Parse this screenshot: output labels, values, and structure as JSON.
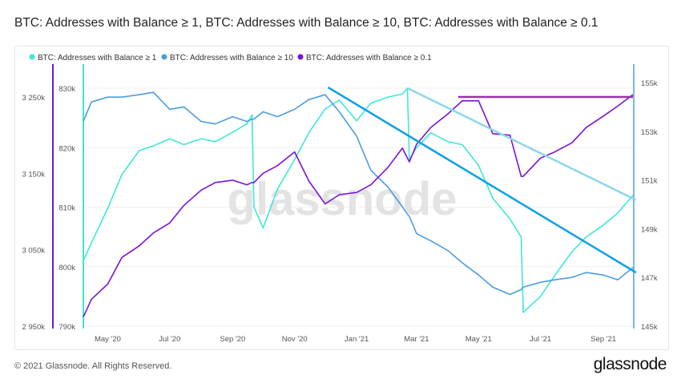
{
  "title": "BTC: Addresses with Balance ≥ 1, BTC: Addresses with Balance ≥ 10, BTC: Addresses with Balance ≥ 0.1",
  "footer": "© 2021 Glassnode. All Rights Reserved.",
  "brand": "glassnode",
  "watermark": "glassnode",
  "chart_data": {
    "type": "line",
    "legend_position": "top-left",
    "grid": true,
    "x": [
      "2020-04-07",
      "2020-04-15",
      "2020-05-01",
      "2020-05-15",
      "2020-06-01",
      "2020-06-15",
      "2020-07-01",
      "2020-07-15",
      "2020-08-01",
      "2020-08-15",
      "2020-09-01",
      "2020-09-15",
      "2020-09-20",
      "2020-09-22",
      "2020-10-01",
      "2020-10-15",
      "2020-11-01",
      "2020-11-15",
      "2020-12-01",
      "2020-12-15",
      "2021-01-01",
      "2021-01-15",
      "2021-02-01",
      "2021-02-15",
      "2021-02-20",
      "2021-02-22",
      "2021-03-01",
      "2021-03-15",
      "2021-04-01",
      "2021-04-15",
      "2021-05-01",
      "2021-05-15",
      "2021-06-01",
      "2021-06-12",
      "2021-06-14",
      "2021-07-01",
      "2021-07-15",
      "2021-08-01",
      "2021-08-15",
      "2021-09-01",
      "2021-09-15",
      "2021-09-30"
    ],
    "xlim": [
      "2020-04-07",
      "2021-09-30"
    ],
    "x_ticks": [
      [
        "2020-05-01",
        "May '20"
      ],
      [
        "2020-07-01",
        "Jul '20"
      ],
      [
        "2020-09-01",
        "Sep '20"
      ],
      [
        "2020-11-01",
        "Nov '20"
      ],
      [
        "2021-01-01",
        "Jan '21"
      ],
      [
        "2021-03-01",
        "Mar '21"
      ],
      [
        "2021-05-01",
        "May '21"
      ],
      [
        "2021-07-01",
        "Jul '21"
      ],
      [
        "2021-09-01",
        "Sep '21"
      ]
    ],
    "axes": {
      "outer_left": {
        "ylim": [
          2950,
          3250
        ],
        "ticks": [
          "2 950k",
          "3 050k",
          "3 150k",
          "3 250k"
        ],
        "tick_values": [
          2950,
          3050,
          3150,
          3250
        ],
        "color": "#7b12d6"
      },
      "inner_left": {
        "ylim": [
          790,
          830
        ],
        "ticks": [
          "790k",
          "800k",
          "810k",
          "820k",
          "830k"
        ],
        "tick_values": [
          790,
          800,
          810,
          820,
          830
        ],
        "color": "#3ee8d8"
      },
      "right": {
        "ylim": [
          145,
          155
        ],
        "ticks": [
          "145k",
          "147k",
          "149k",
          "151k",
          "153k",
          "155k"
        ],
        "tick_values": [
          145,
          147,
          149,
          151,
          153,
          155
        ],
        "color": "#4a9de0"
      }
    },
    "series": [
      {
        "name": "BTC: Addresses with Balance ≥ 1",
        "axis": "inner_left",
        "color": "#3ee8d8",
        "values": [
          801,
          804,
          809.8,
          815.5,
          819.5,
          820.3,
          821.5,
          820.5,
          821.5,
          821,
          822.6,
          824,
          825.5,
          810,
          806.5,
          813,
          818,
          822.5,
          826.5,
          828,
          824.5,
          827.5,
          828.5,
          829,
          830,
          818,
          820,
          822.5,
          821,
          820.5,
          817,
          811.5,
          808,
          805,
          792.3,
          795,
          798.5,
          802.5,
          805,
          807,
          809,
          812
        ]
      },
      {
        "name": "BTC: Addresses with Balance ≥ 10",
        "axis": "right",
        "color": "#4a9de0",
        "values": [
          153.4,
          154.2,
          154.4,
          154.4,
          154.5,
          154.6,
          153.9,
          154.0,
          153.4,
          153.3,
          153.6,
          153.4,
          153.5,
          153.5,
          153.8,
          153.6,
          153.9,
          154.3,
          154.5,
          153.8,
          152.8,
          151.4,
          150.7,
          149.9,
          149.6,
          149.5,
          148.8,
          148.5,
          148.1,
          147.6,
          147.1,
          146.6,
          146.3,
          146.5,
          146.6,
          146.8,
          146.9,
          147.0,
          147.2,
          147.1,
          146.9,
          147.4
        ]
      },
      {
        "name": "BTC: Addresses with Balance ≥ 0.1",
        "axis": "outer_left",
        "color": "#7b12d6",
        "values": [
          2962,
          2985,
          3005,
          3040,
          3055,
          3072,
          3085,
          3108,
          3128,
          3138,
          3141,
          3135,
          3138,
          3138,
          3150,
          3160,
          3178,
          3140,
          3110,
          3122,
          3125,
          3135,
          3158,
          3183,
          3170,
          3165,
          3188,
          3210,
          3228,
          3245,
          3245,
          3202,
          3200,
          3146,
          3146,
          3170,
          3178,
          3190,
          3210,
          3225,
          3238,
          3253
        ]
      }
    ],
    "annotations": [
      {
        "type": "trendline",
        "axis": "right",
        "color": "#0ea0e6",
        "from": [
          "2020-12-04",
          154.8
        ],
        "to": [
          "2021-10-03",
          147.2
        ]
      },
      {
        "type": "trendline",
        "axis": "inner_left",
        "color": "#8ad7ea",
        "from": [
          "2021-02-20",
          830
        ],
        "to": [
          "2021-10-03",
          811.2
        ]
      },
      {
        "type": "trendline",
        "axis": "outer_left",
        "color": "#9b2fae",
        "from": [
          "2021-04-11",
          3250
        ],
        "to": [
          "2021-09-30",
          3250
        ]
      }
    ]
  }
}
